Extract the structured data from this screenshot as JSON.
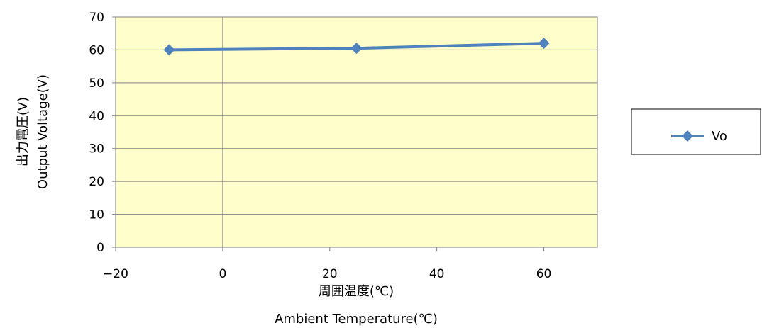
{
  "chart_data": {
    "type": "line",
    "x": [
      -10,
      25,
      60
    ],
    "series": [
      {
        "name": "Vo",
        "values": [
          60,
          60.5,
          62
        ],
        "color": "#4f81bd",
        "marker": "diamond"
      }
    ],
    "xlim": [
      -20,
      70
    ],
    "ylim": [
      0,
      70
    ],
    "xticks": [
      -20,
      0,
      20,
      40,
      60
    ],
    "yticks": [
      0,
      10,
      20,
      30,
      40,
      50,
      60,
      70
    ],
    "xtick_labels": [
      "−20",
      "0",
      "20",
      "40",
      "60"
    ],
    "ytick_labels": [
      "0",
      "10",
      "20",
      "30",
      "40",
      "50",
      "60",
      "70"
    ],
    "xlabel": [
      "周囲温度(℃)",
      "Ambient Temperature(℃)"
    ],
    "ylabel": [
      "出力電圧(V)",
      "Output  Voltage(V)"
    ],
    "grid": "horizontal",
    "legend": "right",
    "plot_background": "#ffffcc"
  }
}
